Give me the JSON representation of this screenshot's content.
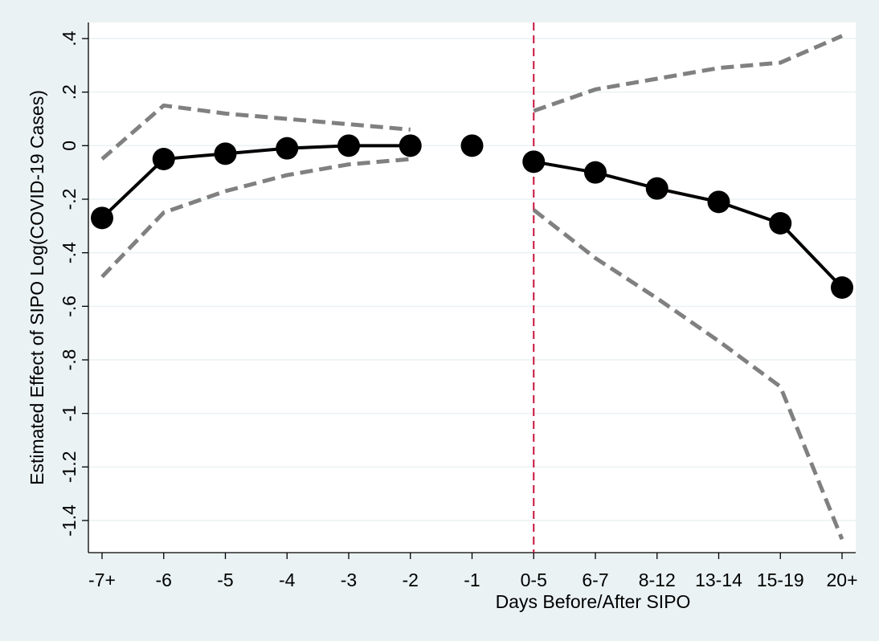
{
  "chart_data": {
    "type": "line",
    "x_label": "Days Before/After SIPO",
    "y_label": "Estimated Effect of SIPO Log(COVID-19 Cases)",
    "categories": [
      "-7+",
      "-6",
      "-5",
      "-4",
      "-3",
      "-2",
      "-1",
      "0-5",
      "6-7",
      "8-12",
      "13-14",
      "15-19",
      "20+"
    ],
    "series": [
      {
        "color": "#000000",
        "style": "solid",
        "markers": true,
        "values": [
          -0.27,
          -0.05,
          -0.03,
          -0.01,
          0,
          0,
          0,
          -0.06,
          -0.1,
          -0.16,
          -0.21,
          -0.29,
          -0.53
        ]
      },
      {
        "color": "#808080",
        "style": "dashed",
        "markers": false,
        "values": [
          -0.05,
          0.15,
          0.12,
          0.1,
          0.08,
          0.06,
          null,
          0.13,
          0.21,
          0.25,
          0.29,
          0.31,
          0.41
        ]
      },
      {
        "color": "#808080",
        "style": "dashed",
        "markers": false,
        "values": [
          -0.49,
          -0.25,
          -0.17,
          -0.11,
          -0.07,
          -0.05,
          null,
          -0.24,
          -0.42,
          -0.57,
          -0.73,
          -0.9,
          -1.47
        ]
      }
    ],
    "reference_line": {
      "category": "0-5",
      "color": "#c8143c"
    },
    "ylim": [
      -1.52,
      0.46
    ],
    "yticks": [
      {
        "value": 0.4,
        "label": ".4"
      },
      {
        "value": 0.2,
        "label": ".2"
      },
      0,
      {
        "value": -0.2,
        "label": "-.2"
      },
      {
        "value": -0.4,
        "label": "-.4"
      },
      {
        "value": -0.6,
        "label": "-.6"
      },
      {
        "value": -0.8,
        "label": "-.8"
      },
      -1,
      {
        "value": -1.2,
        "label": "-1.2"
      },
      {
        "value": -1.4,
        "label": "-1.4"
      }
    ],
    "grid": true
  }
}
